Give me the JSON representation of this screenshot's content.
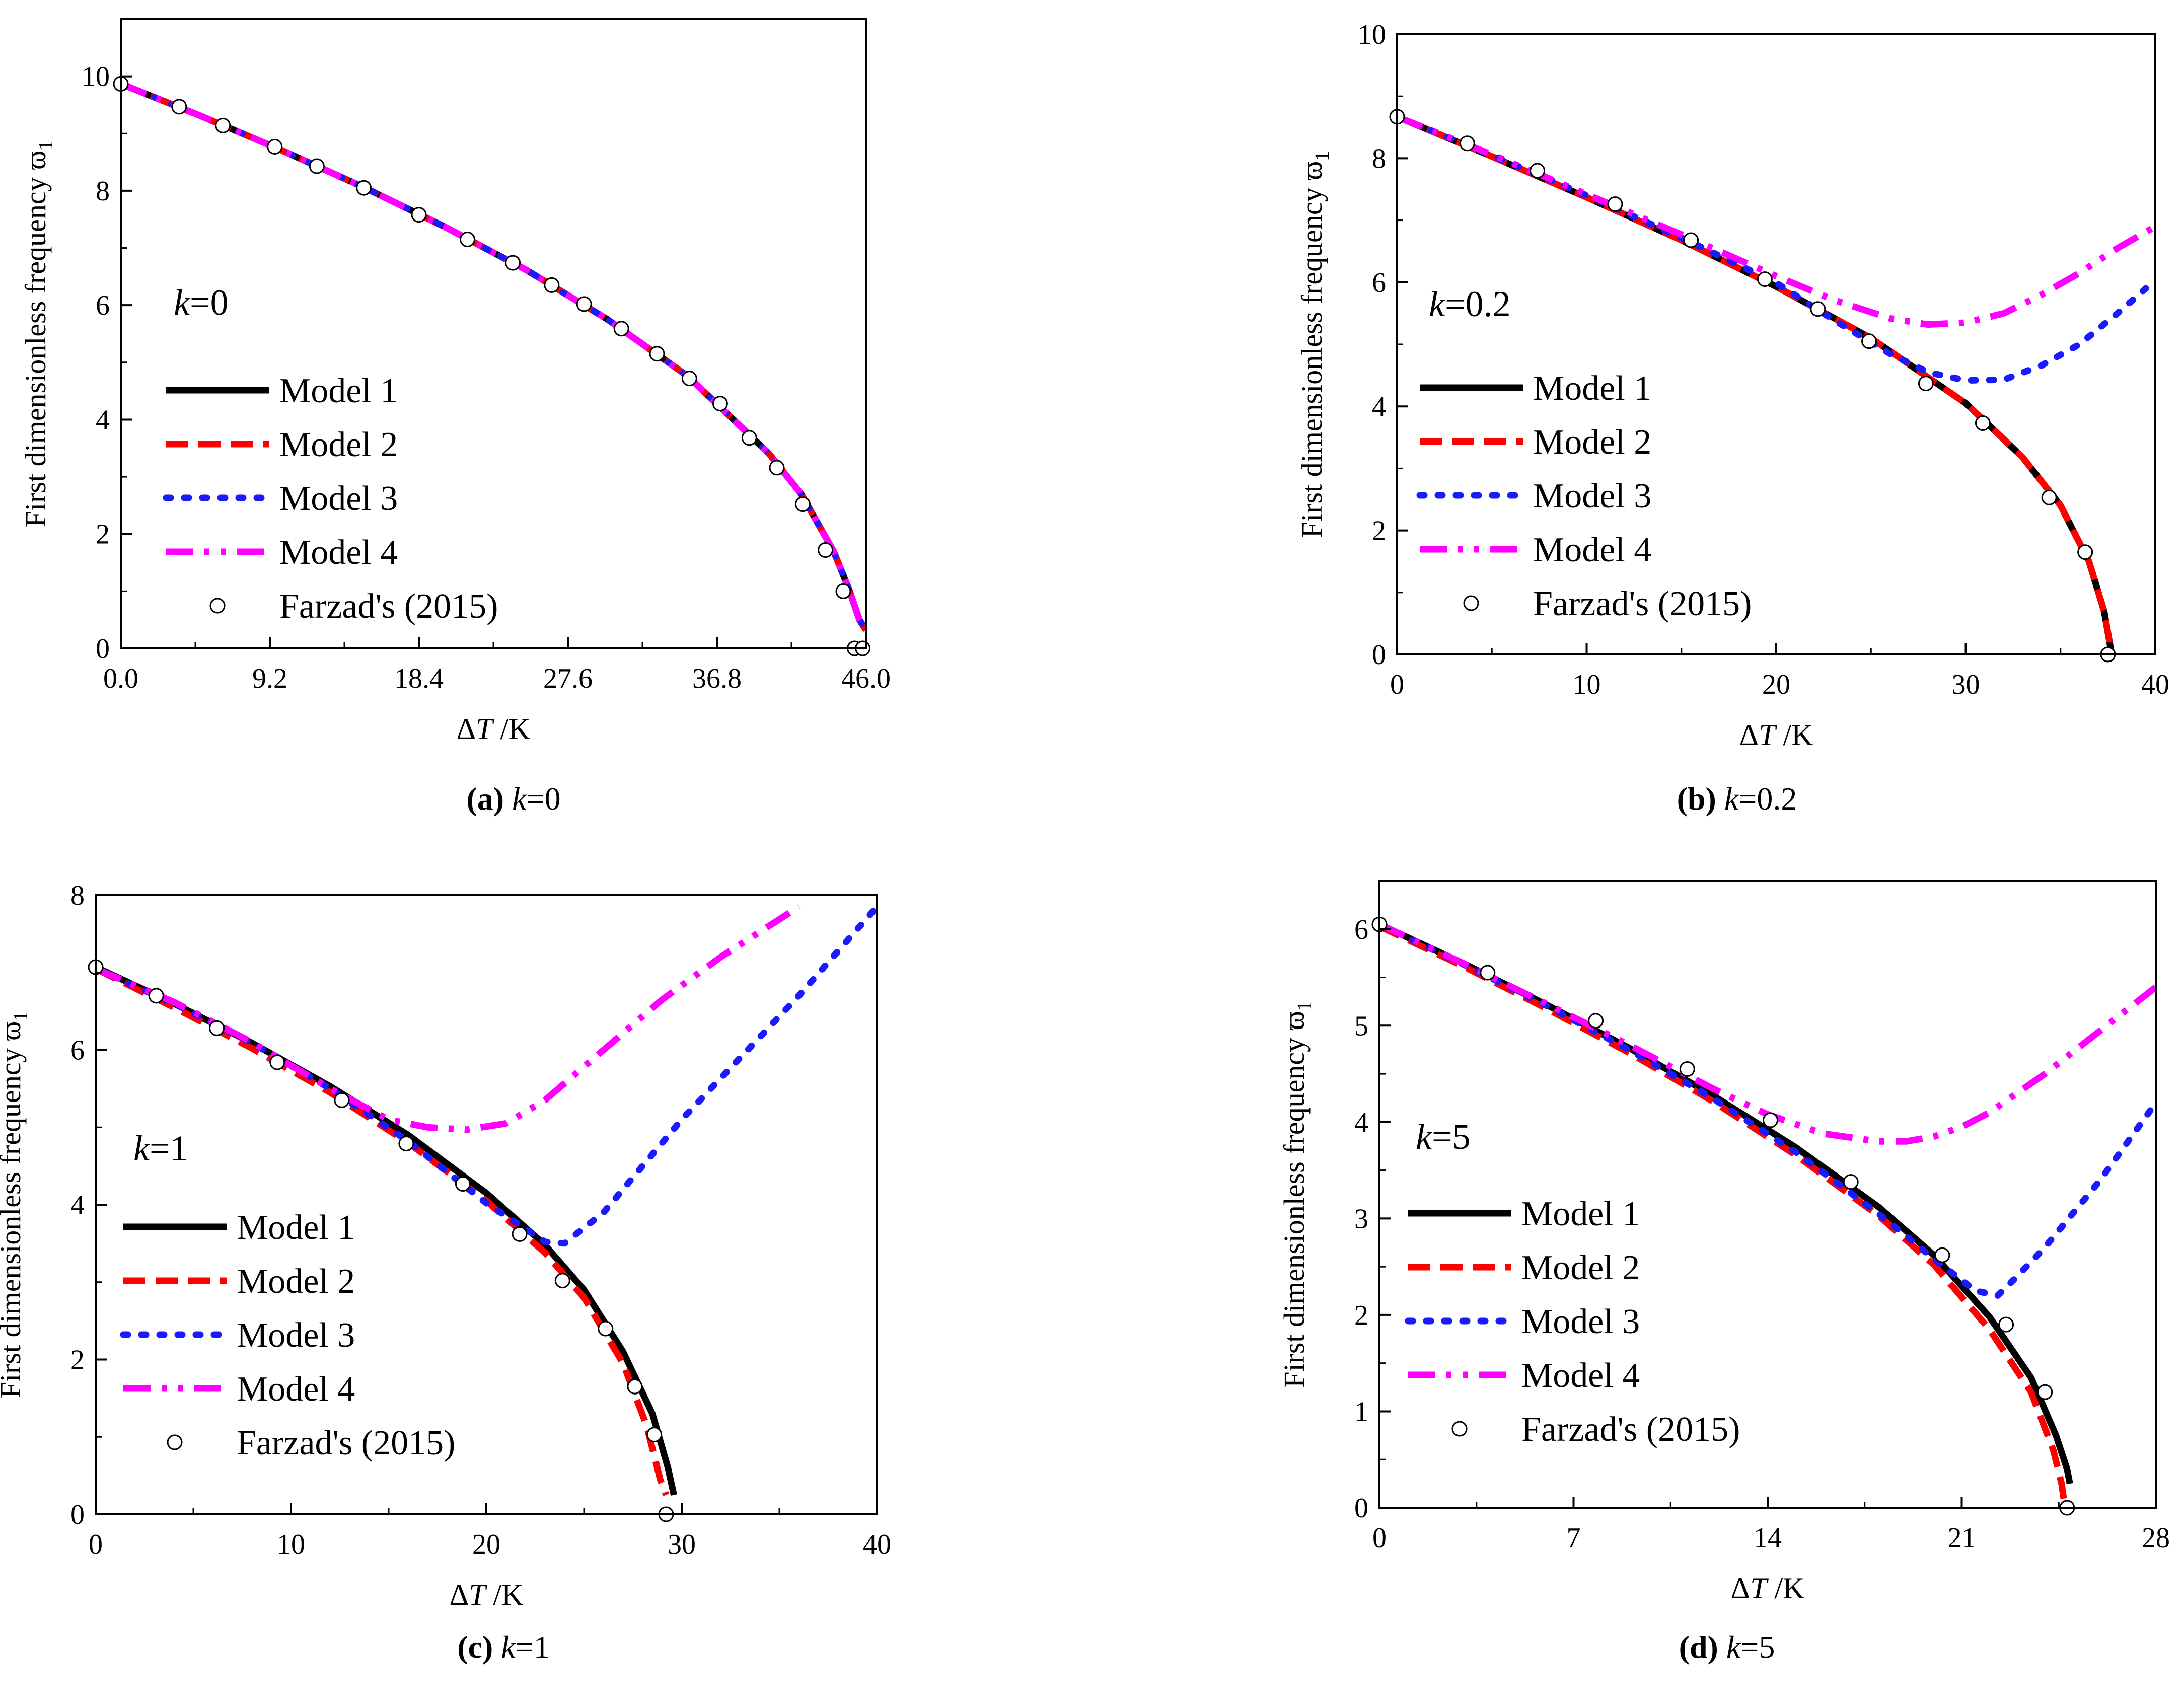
{
  "figure": {
    "ylabel": "First dimensionless frequency ϖ",
    "ylabel_sub": "1",
    "xlabel_delta": "Δ",
    "xlabel_T": "T",
    "xlabel_unit": " /K"
  },
  "legend": {
    "model1": "Model 1",
    "model2": "Model 2",
    "model3": "Model 3",
    "model4": "Model 4",
    "ref": "Farzad's (2015)"
  },
  "colors": {
    "model1": "#000000",
    "model2": "#ff0000",
    "model3": "#1a1aff",
    "model4": "#ff00ff",
    "marker_edge": "#000000"
  },
  "chart_data": [
    {
      "type": "line",
      "panel_label": "(a)",
      "caption_var": "k",
      "caption_val": "=0",
      "annotation": "=0",
      "xlim": [
        0,
        46
      ],
      "ylim": [
        0,
        11
      ],
      "xticks": [
        0,
        9.2,
        18.4,
        27.6,
        36.8,
        46
      ],
      "xtick_labels": [
        "0.0",
        "9.2",
        "18.4",
        "27.6",
        "36.8",
        "46.0"
      ],
      "yticks": [
        0,
        2,
        4,
        6,
        8,
        10
      ],
      "ytick_labels": [
        "0",
        "2",
        "4",
        "6",
        "8",
        "10"
      ],
      "series": [
        {
          "name": "Model 1",
          "x": [
            0,
            5,
            10,
            15,
            20,
            25,
            30,
            35,
            40,
            42,
            44,
            45,
            45.6,
            46
          ],
          "y": [
            9.87,
            9.3,
            8.7,
            8.06,
            7.37,
            6.62,
            5.76,
            4.76,
            3.41,
            2.7,
            1.7,
            1.0,
            0.5,
            0.32
          ]
        },
        {
          "name": "Model 2",
          "x": [
            0,
            5,
            10,
            15,
            20,
            25,
            30,
            35,
            40,
            42,
            44,
            45,
            45.6,
            46
          ],
          "y": [
            9.87,
            9.3,
            8.7,
            8.06,
            7.37,
            6.62,
            5.76,
            4.76,
            3.41,
            2.7,
            1.7,
            1.0,
            0.5,
            0.32
          ]
        },
        {
          "name": "Model 3",
          "x": [
            0,
            5,
            10,
            15,
            20,
            25,
            30,
            35,
            40,
            42,
            44,
            45,
            45.6,
            46
          ],
          "y": [
            9.87,
            9.3,
            8.7,
            8.06,
            7.37,
            6.62,
            5.76,
            4.76,
            3.41,
            2.7,
            1.7,
            1.0,
            0.5,
            0.32
          ]
        },
        {
          "name": "Model 4",
          "x": [
            0,
            5,
            10,
            15,
            20,
            25,
            30,
            35,
            40,
            42,
            44,
            45,
            45.6,
            46
          ],
          "y": [
            9.87,
            9.3,
            8.7,
            8.06,
            7.37,
            6.62,
            5.76,
            4.76,
            3.41,
            2.7,
            1.7,
            1.0,
            0.5,
            0.32
          ]
        }
      ],
      "reference_points": {
        "name": "Farzad's (2015)",
        "x": [
          0,
          3.6,
          6.3,
          9.5,
          12.1,
          15,
          18.4,
          21.4,
          24.2,
          26.6,
          28.6,
          30.9,
          33.1,
          35.1,
          37,
          38.8,
          40.5,
          42.1,
          43.5,
          44.6,
          45.3,
          45.8
        ],
        "y": [
          9.87,
          9.47,
          9.14,
          8.77,
          8.43,
          8.05,
          7.58,
          7.15,
          6.74,
          6.35,
          6.02,
          5.59,
          5.15,
          4.72,
          4.28,
          3.68,
          3.16,
          2.52,
          1.72,
          1.0,
          0.0,
          0.0
        ]
      }
    },
    {
      "type": "line",
      "panel_label": "(b)",
      "caption_var": "k",
      "caption_val": "=0.2",
      "annotation": "=0.2",
      "xlim": [
        0,
        40
      ],
      "ylim": [
        0,
        10
      ],
      "xticks": [
        0,
        10,
        20,
        30,
        40
      ],
      "xtick_labels": [
        "0",
        "10",
        "20",
        "30",
        "40"
      ],
      "yticks": [
        0,
        2,
        4,
        6,
        8,
        10
      ],
      "ytick_labels": [
        "0",
        "2",
        "4",
        "6",
        "8",
        "10"
      ],
      "series": [
        {
          "name": "Model 1",
          "x": [
            0,
            5,
            10,
            15,
            20,
            25,
            30,
            33,
            35,
            36.5,
            37.3,
            37.7
          ],
          "y": [
            8.67,
            8.03,
            7.37,
            6.68,
            5.93,
            5.1,
            4.05,
            3.18,
            2.4,
            1.5,
            0.7,
            0.0
          ]
        },
        {
          "name": "Model 2",
          "x": [
            0,
            5,
            10,
            15,
            20,
            25,
            30,
            33,
            35,
            36.5,
            37.3,
            37.7
          ],
          "y": [
            8.67,
            8.03,
            7.37,
            6.68,
            5.93,
            5.1,
            4.05,
            3.18,
            2.4,
            1.5,
            0.7,
            0.0
          ]
        },
        {
          "name": "Model 3",
          "x": [
            0,
            5,
            10,
            15,
            20,
            23,
            26,
            28,
            30,
            32,
            34,
            36,
            38,
            39.5
          ],
          "y": [
            8.67,
            8.05,
            7.4,
            6.72,
            5.99,
            5.4,
            4.85,
            4.55,
            4.42,
            4.43,
            4.66,
            5.0,
            5.5,
            5.9
          ]
        },
        {
          "name": "Model 4",
          "x": [
            0,
            5,
            10,
            15,
            20,
            23,
            26,
            28,
            30,
            32,
            34,
            36,
            38,
            40
          ],
          "y": [
            8.67,
            8.06,
            7.42,
            6.77,
            6.1,
            5.72,
            5.42,
            5.32,
            5.35,
            5.5,
            5.8,
            6.15,
            6.55,
            6.9
          ]
        }
      ],
      "reference_points": {
        "name": "Farzad's (2015)",
        "x": [
          0,
          3.7,
          7.4,
          11.5,
          15.5,
          19.4,
          22.2,
          24.9,
          27.9,
          30.9,
          34.4,
          36.3,
          37.5
        ],
        "y": [
          8.67,
          8.24,
          7.8,
          7.26,
          6.68,
          6.05,
          5.57,
          5.05,
          4.37,
          3.73,
          2.53,
          1.65,
          0.0
        ]
      }
    },
    {
      "type": "line",
      "panel_label": "(c)",
      "caption_var": "k",
      "caption_val": "=1",
      "annotation": "=1",
      "xlim": [
        0,
        40
      ],
      "ylim": [
        0,
        8
      ],
      "xticks": [
        0,
        10,
        20,
        30,
        40
      ],
      "xtick_labels": [
        "0",
        "10",
        "20",
        "30",
        "40"
      ],
      "yticks": [
        0,
        2,
        4,
        6,
        8
      ],
      "ytick_labels": [
        "0",
        "2",
        "4",
        "6",
        "8"
      ],
      "series": [
        {
          "name": "Model 1",
          "x": [
            0,
            4,
            8,
            12,
            16,
            20,
            23,
            25,
            27,
            28.5,
            29.3,
            29.6
          ],
          "y": [
            7.07,
            6.6,
            6.09,
            5.53,
            4.9,
            4.15,
            3.48,
            2.9,
            2.1,
            1.3,
            0.6,
            0.25
          ]
        },
        {
          "name": "Model 2",
          "x": [
            0,
            4,
            8,
            12,
            16,
            20,
            23,
            25,
            27,
            28.2,
            28.9,
            29.2
          ],
          "y": [
            7.05,
            6.55,
            6.02,
            5.45,
            4.8,
            4.05,
            3.38,
            2.8,
            1.95,
            1.15,
            0.45,
            0.25
          ]
        },
        {
          "name": "Model 3",
          "x": [
            0,
            4,
            8,
            12,
            16,
            20,
            23,
            24,
            26,
            28,
            30,
            33,
            36,
            40
          ],
          "y": [
            7.05,
            6.6,
            6.09,
            5.5,
            4.82,
            4.02,
            3.52,
            3.5,
            3.9,
            4.5,
            5.1,
            5.9,
            6.7,
            7.85
          ]
        },
        {
          "name": "Model 4",
          "x": [
            0,
            4,
            8,
            12,
            15,
            17,
            19,
            21,
            23,
            26,
            29,
            32,
            36
          ],
          "y": [
            7.05,
            6.62,
            6.1,
            5.5,
            5.1,
            5.0,
            4.97,
            5.05,
            5.35,
            6.0,
            6.65,
            7.2,
            7.85
          ]
        }
      ],
      "reference_points": {
        "name": "Farzad's (2015)",
        "x": [
          0,
          3.1,
          6.2,
          9.3,
          12.6,
          15.9,
          18.8,
          21.7,
          23.9,
          26.1,
          27.6,
          28.6,
          29.2
        ],
        "y": [
          7.07,
          6.7,
          6.28,
          5.84,
          5.35,
          4.79,
          4.27,
          3.62,
          3.02,
          2.4,
          1.65,
          1.03,
          0.0
        ]
      }
    },
    {
      "type": "line",
      "panel_label": "(d)",
      "caption_var": "k",
      "caption_val": "=5",
      "annotation": "=5",
      "xlim": [
        0,
        28
      ],
      "ylim": [
        0,
        6.5
      ],
      "xticks": [
        0,
        7,
        14,
        21,
        28
      ],
      "xtick_labels": [
        "0",
        "7",
        "14",
        "21",
        "28"
      ],
      "yticks": [
        0,
        1,
        2,
        3,
        4,
        5,
        6
      ],
      "ytick_labels": [
        "0",
        "1",
        "2",
        "3",
        "4",
        "5",
        "6"
      ],
      "series": [
        {
          "name": "Model 1",
          "x": [
            0,
            3,
            6,
            9,
            12,
            15,
            18,
            20,
            22,
            23.5,
            24.4,
            24.8,
            24.9
          ],
          "y": [
            6.05,
            5.65,
            5.22,
            4.77,
            4.28,
            3.74,
            3.12,
            2.62,
            1.98,
            1.35,
            0.75,
            0.4,
            0.25
          ]
        },
        {
          "name": "Model 2",
          "x": [
            0,
            3,
            6,
            9,
            12,
            15,
            18,
            20,
            22,
            23.5,
            24.3,
            24.6,
            24.7
          ],
          "y": [
            6.03,
            5.62,
            5.18,
            4.72,
            4.22,
            3.66,
            3.03,
            2.52,
            1.85,
            1.2,
            0.6,
            0.25,
            0.05
          ]
        },
        {
          "name": "Model 3",
          "x": [
            0,
            3,
            6,
            9,
            12,
            15,
            18,
            20,
            21.5,
            22.3,
            23,
            24,
            25,
            26,
            27,
            28
          ],
          "y": [
            6.05,
            5.64,
            5.21,
            4.75,
            4.25,
            3.69,
            3.05,
            2.58,
            2.25,
            2.2,
            2.4,
            2.7,
            3.05,
            3.4,
            3.8,
            4.2
          ]
        },
        {
          "name": "Model 4",
          "x": [
            0,
            3,
            6,
            9,
            12,
            14,
            16,
            18,
            19,
            20,
            21,
            22,
            24,
            26,
            28
          ],
          "y": [
            6.05,
            5.65,
            5.23,
            4.8,
            4.35,
            4.08,
            3.88,
            3.8,
            3.8,
            3.85,
            3.95,
            4.1,
            4.5,
            4.95,
            5.4
          ]
        }
      ],
      "reference_points": {
        "name": "Farzad's (2015)",
        "x": [
          0,
          3.9,
          7.8,
          11.1,
          14.1,
          17,
          20.3,
          22.6,
          24,
          24.8
        ],
        "y": [
          6.05,
          5.55,
          5.05,
          4.55,
          4.02,
          3.38,
          2.62,
          1.9,
          1.2,
          0.0
        ]
      }
    }
  ]
}
